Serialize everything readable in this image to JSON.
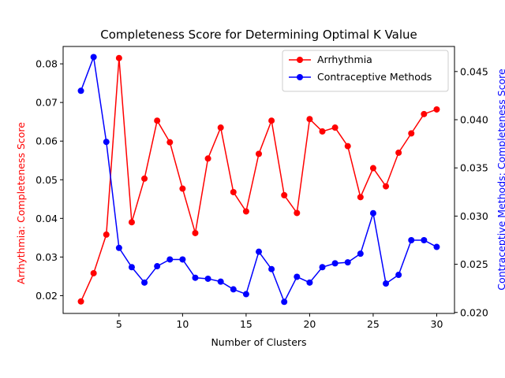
{
  "chart_data": {
    "type": "line",
    "title": "Completeness Score for Determining Optimal K Value",
    "xlabel": "Number of Clusters",
    "ylabel_left": "Arrhythmia: Completeness Score",
    "ylabel_right": "Contraceptive Methods: Completeness Score",
    "x": [
      2,
      3,
      4,
      5,
      6,
      7,
      8,
      9,
      10,
      11,
      12,
      13,
      14,
      15,
      16,
      17,
      18,
      19,
      20,
      21,
      22,
      23,
      24,
      25,
      26,
      27,
      28,
      29,
      30
    ],
    "xlim": [
      0.6,
      31.4
    ],
    "xticks": [
      5,
      10,
      15,
      20,
      25,
      30
    ],
    "ylim_left": [
      0.0154,
      0.0845
    ],
    "yticks_left": [
      "0.02",
      "0.03",
      "0.04",
      "0.05",
      "0.06",
      "0.07",
      "0.08"
    ],
    "ylim_right": [
      0.0199,
      0.0476
    ],
    "yticks_right": [
      "0.020",
      "0.025",
      "0.030",
      "0.035",
      "0.040",
      "0.045"
    ],
    "series": [
      {
        "name": "Arrhythmia",
        "axis": "left",
        "color": "#ff0000",
        "values": [
          0.0185,
          0.0258,
          0.0358,
          0.0815,
          0.039,
          0.0503,
          0.0653,
          0.0597,
          0.0477,
          0.0362,
          0.0555,
          0.0635,
          0.0468,
          0.0418,
          0.0567,
          0.0653,
          0.046,
          0.0414,
          0.0657,
          0.0625,
          0.0635,
          0.0587,
          0.0455,
          0.053,
          0.0483,
          0.057,
          0.062,
          0.067,
          0.0682
        ]
      },
      {
        "name": "Contraceptive Methods",
        "axis": "right",
        "color": "#0000ff",
        "values": [
          0.043,
          0.0465,
          0.0377,
          0.0267,
          0.0247,
          0.0231,
          0.0248,
          0.0255,
          0.0255,
          0.0236,
          0.0235,
          0.0232,
          0.0224,
          0.0219,
          0.0263,
          0.0245,
          0.0211,
          0.0237,
          0.0231,
          0.0247,
          0.0251,
          0.0252,
          0.0261,
          0.0303,
          0.023,
          0.0239,
          0.0275,
          0.0275,
          0.0268
        ]
      }
    ],
    "legend_position": "top-right",
    "grid": false
  }
}
